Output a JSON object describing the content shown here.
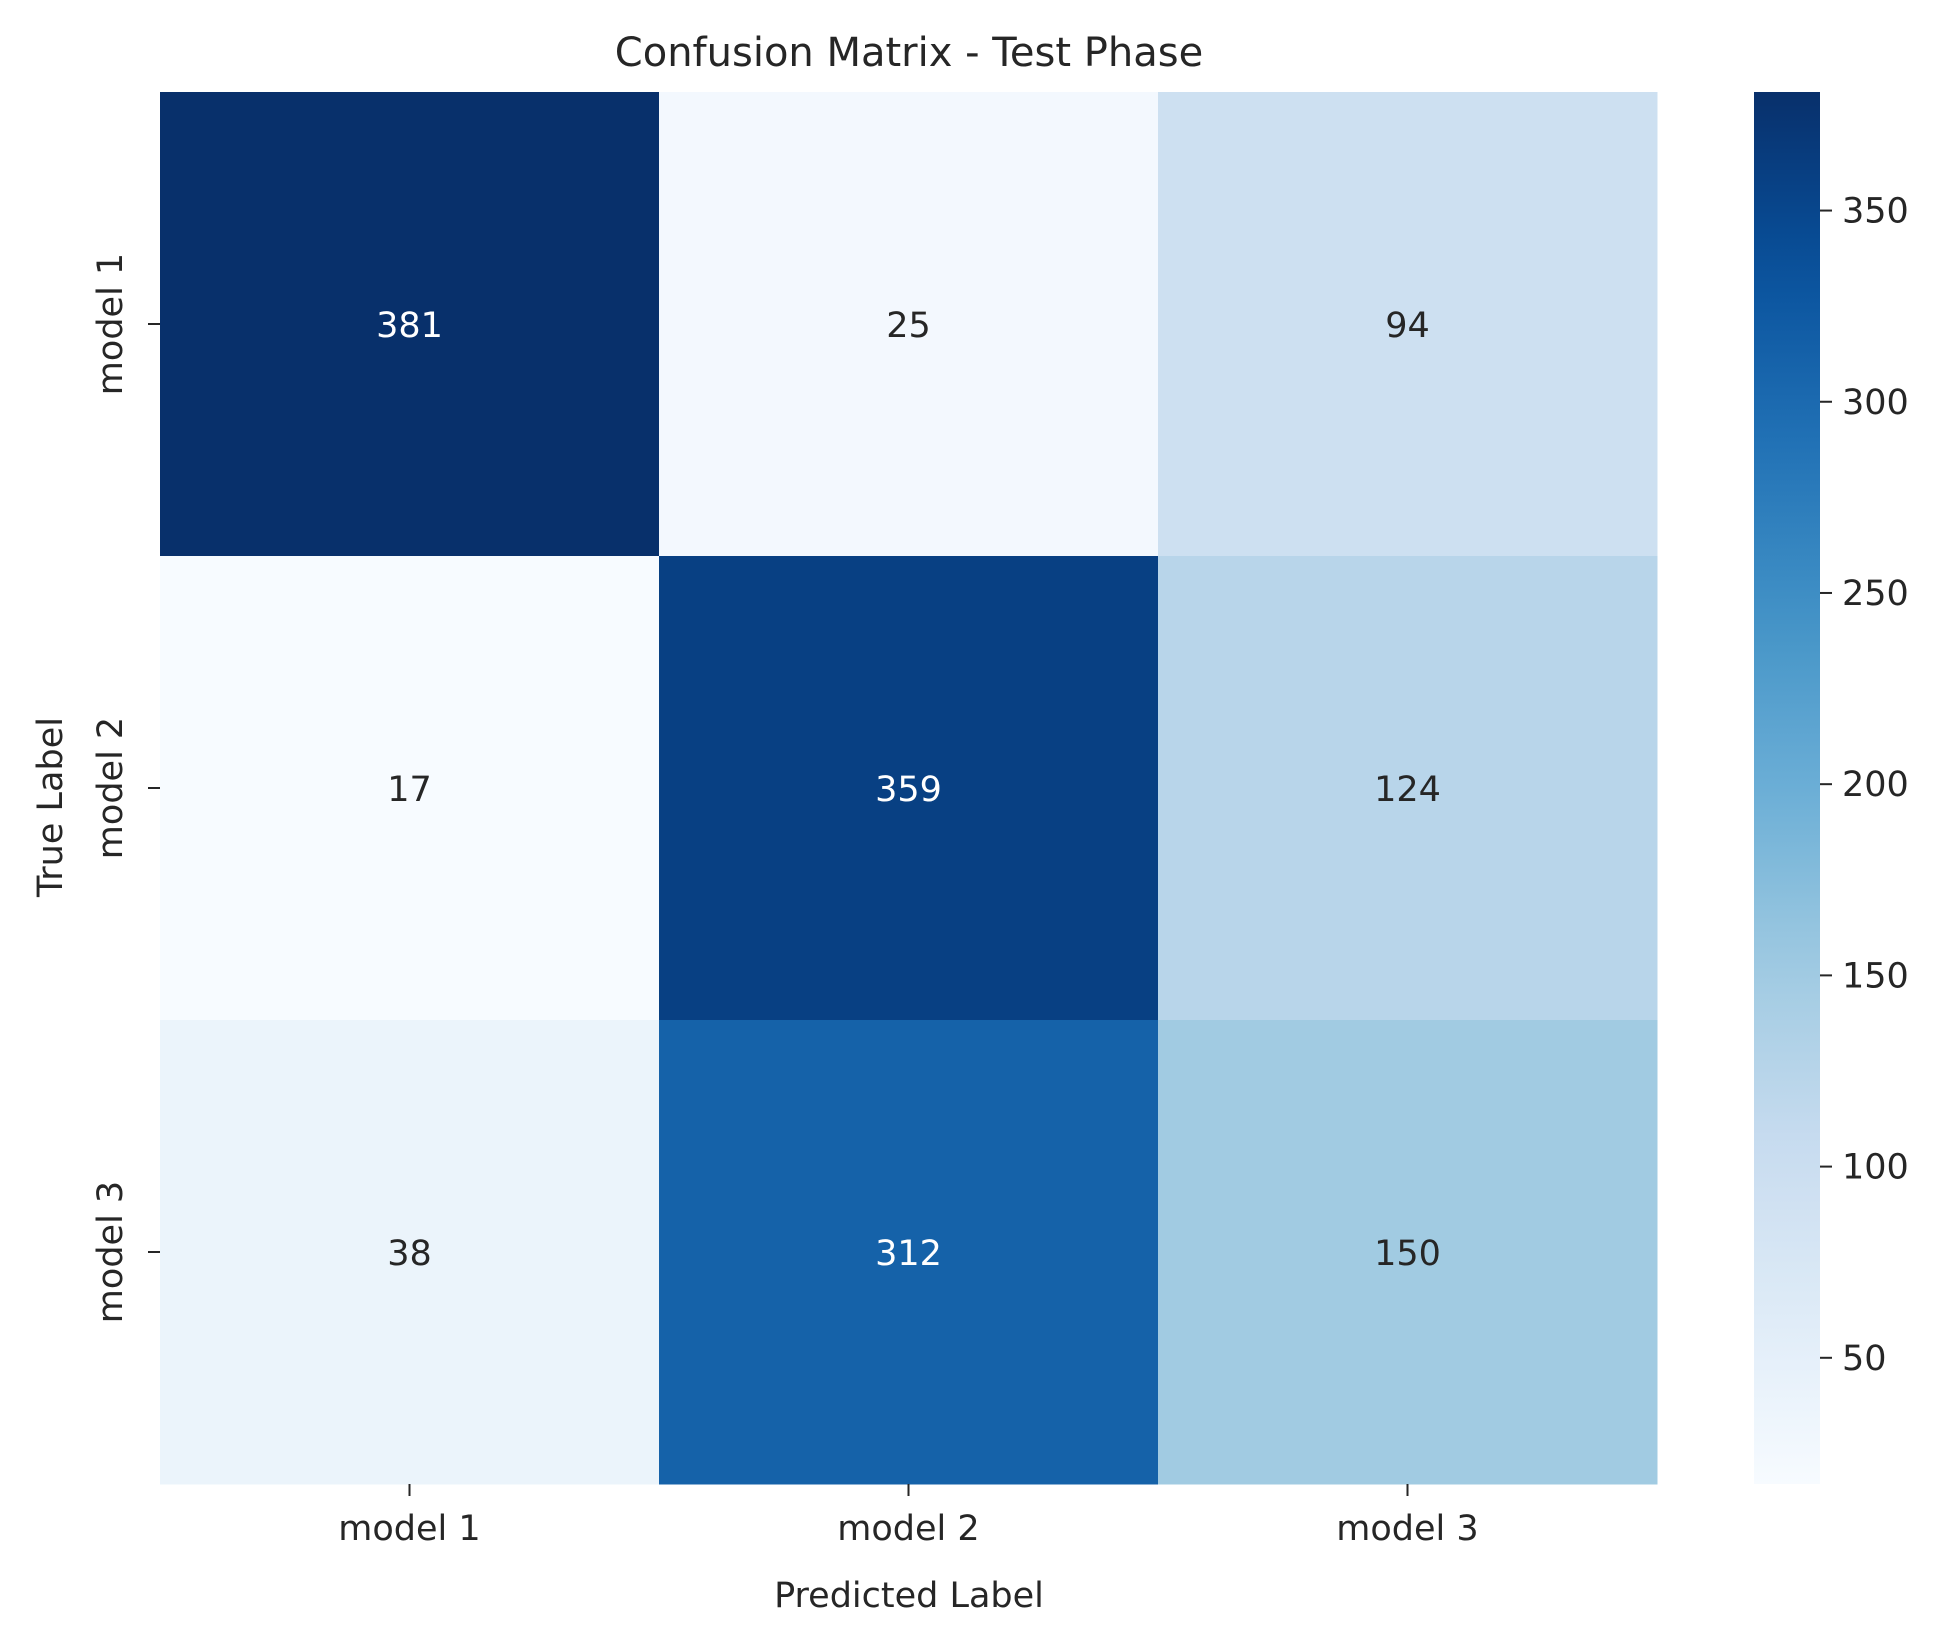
{
  "chart_data": {
    "type": "heatmap",
    "title": "Confusion Matrix - Test Phase",
    "xlabel": "Predicted Label",
    "ylabel": "True Label",
    "x_categories": [
      "model 1",
      "model 2",
      "model 3"
    ],
    "y_categories": [
      "model 1",
      "model 2",
      "model 3"
    ],
    "values": [
      [
        381,
        25,
        94
      ],
      [
        17,
        359,
        124
      ],
      [
        38,
        312,
        150
      ]
    ],
    "colormap": "Blues",
    "color_range": [
      17,
      381
    ],
    "colorbar": {
      "ticks": [
        50,
        100,
        150,
        200,
        250,
        300,
        350
      ]
    },
    "annotation_colors": {
      "dark": "#262626",
      "light": "#ffffff"
    }
  }
}
